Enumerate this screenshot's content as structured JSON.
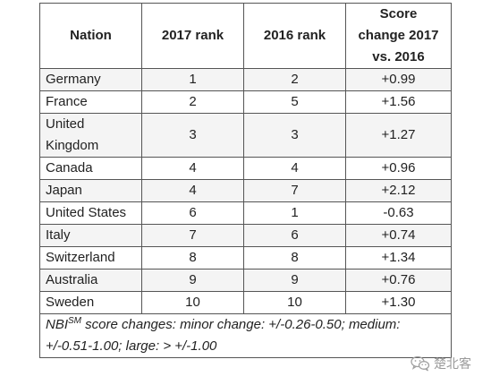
{
  "table": {
    "headers": {
      "nation": "Nation",
      "rank2017": "2017 rank",
      "rank2016": "2016 rank",
      "change_line1": "Score",
      "change_line2": "change 2017",
      "change_line3": "vs. 2016"
    },
    "rows": [
      {
        "nation": "Germany",
        "rank2017": "1",
        "rank2016": "2",
        "change": "+0.99"
      },
      {
        "nation": "France",
        "rank2017": "2",
        "rank2016": "5",
        "change": "+1.56"
      },
      {
        "nation": "United Kingdom",
        "rank2017": "3",
        "rank2016": "3",
        "change": "+1.27"
      },
      {
        "nation": "Canada",
        "rank2017": "4",
        "rank2016": "4",
        "change": "+0.96"
      },
      {
        "nation": "Japan",
        "rank2017": "4",
        "rank2016": "7",
        "change": "+2.12"
      },
      {
        "nation": "United States",
        "rank2017": "6",
        "rank2016": "1",
        "change": "-0.63"
      },
      {
        "nation": "Italy",
        "rank2017": "7",
        "rank2016": "6",
        "change": "+0.74"
      },
      {
        "nation": "Switzerland",
        "rank2017": "8",
        "rank2016": "8",
        "change": "+1.34"
      },
      {
        "nation": "Australia",
        "rank2017": "9",
        "rank2016": "9",
        "change": "+0.76"
      },
      {
        "nation": "Sweden",
        "rank2017": "10",
        "rank2016": "10",
        "change": "+1.30"
      }
    ],
    "note": {
      "prefix": "NBI",
      "superscript": "SM",
      "text": " score changes: minor change: +/-0.26-0.50; medium: +/-0.51-1.00; large: > +/-1.00"
    }
  },
  "watermark": {
    "text": "楚北客",
    "icon": "wechat-icon"
  }
}
